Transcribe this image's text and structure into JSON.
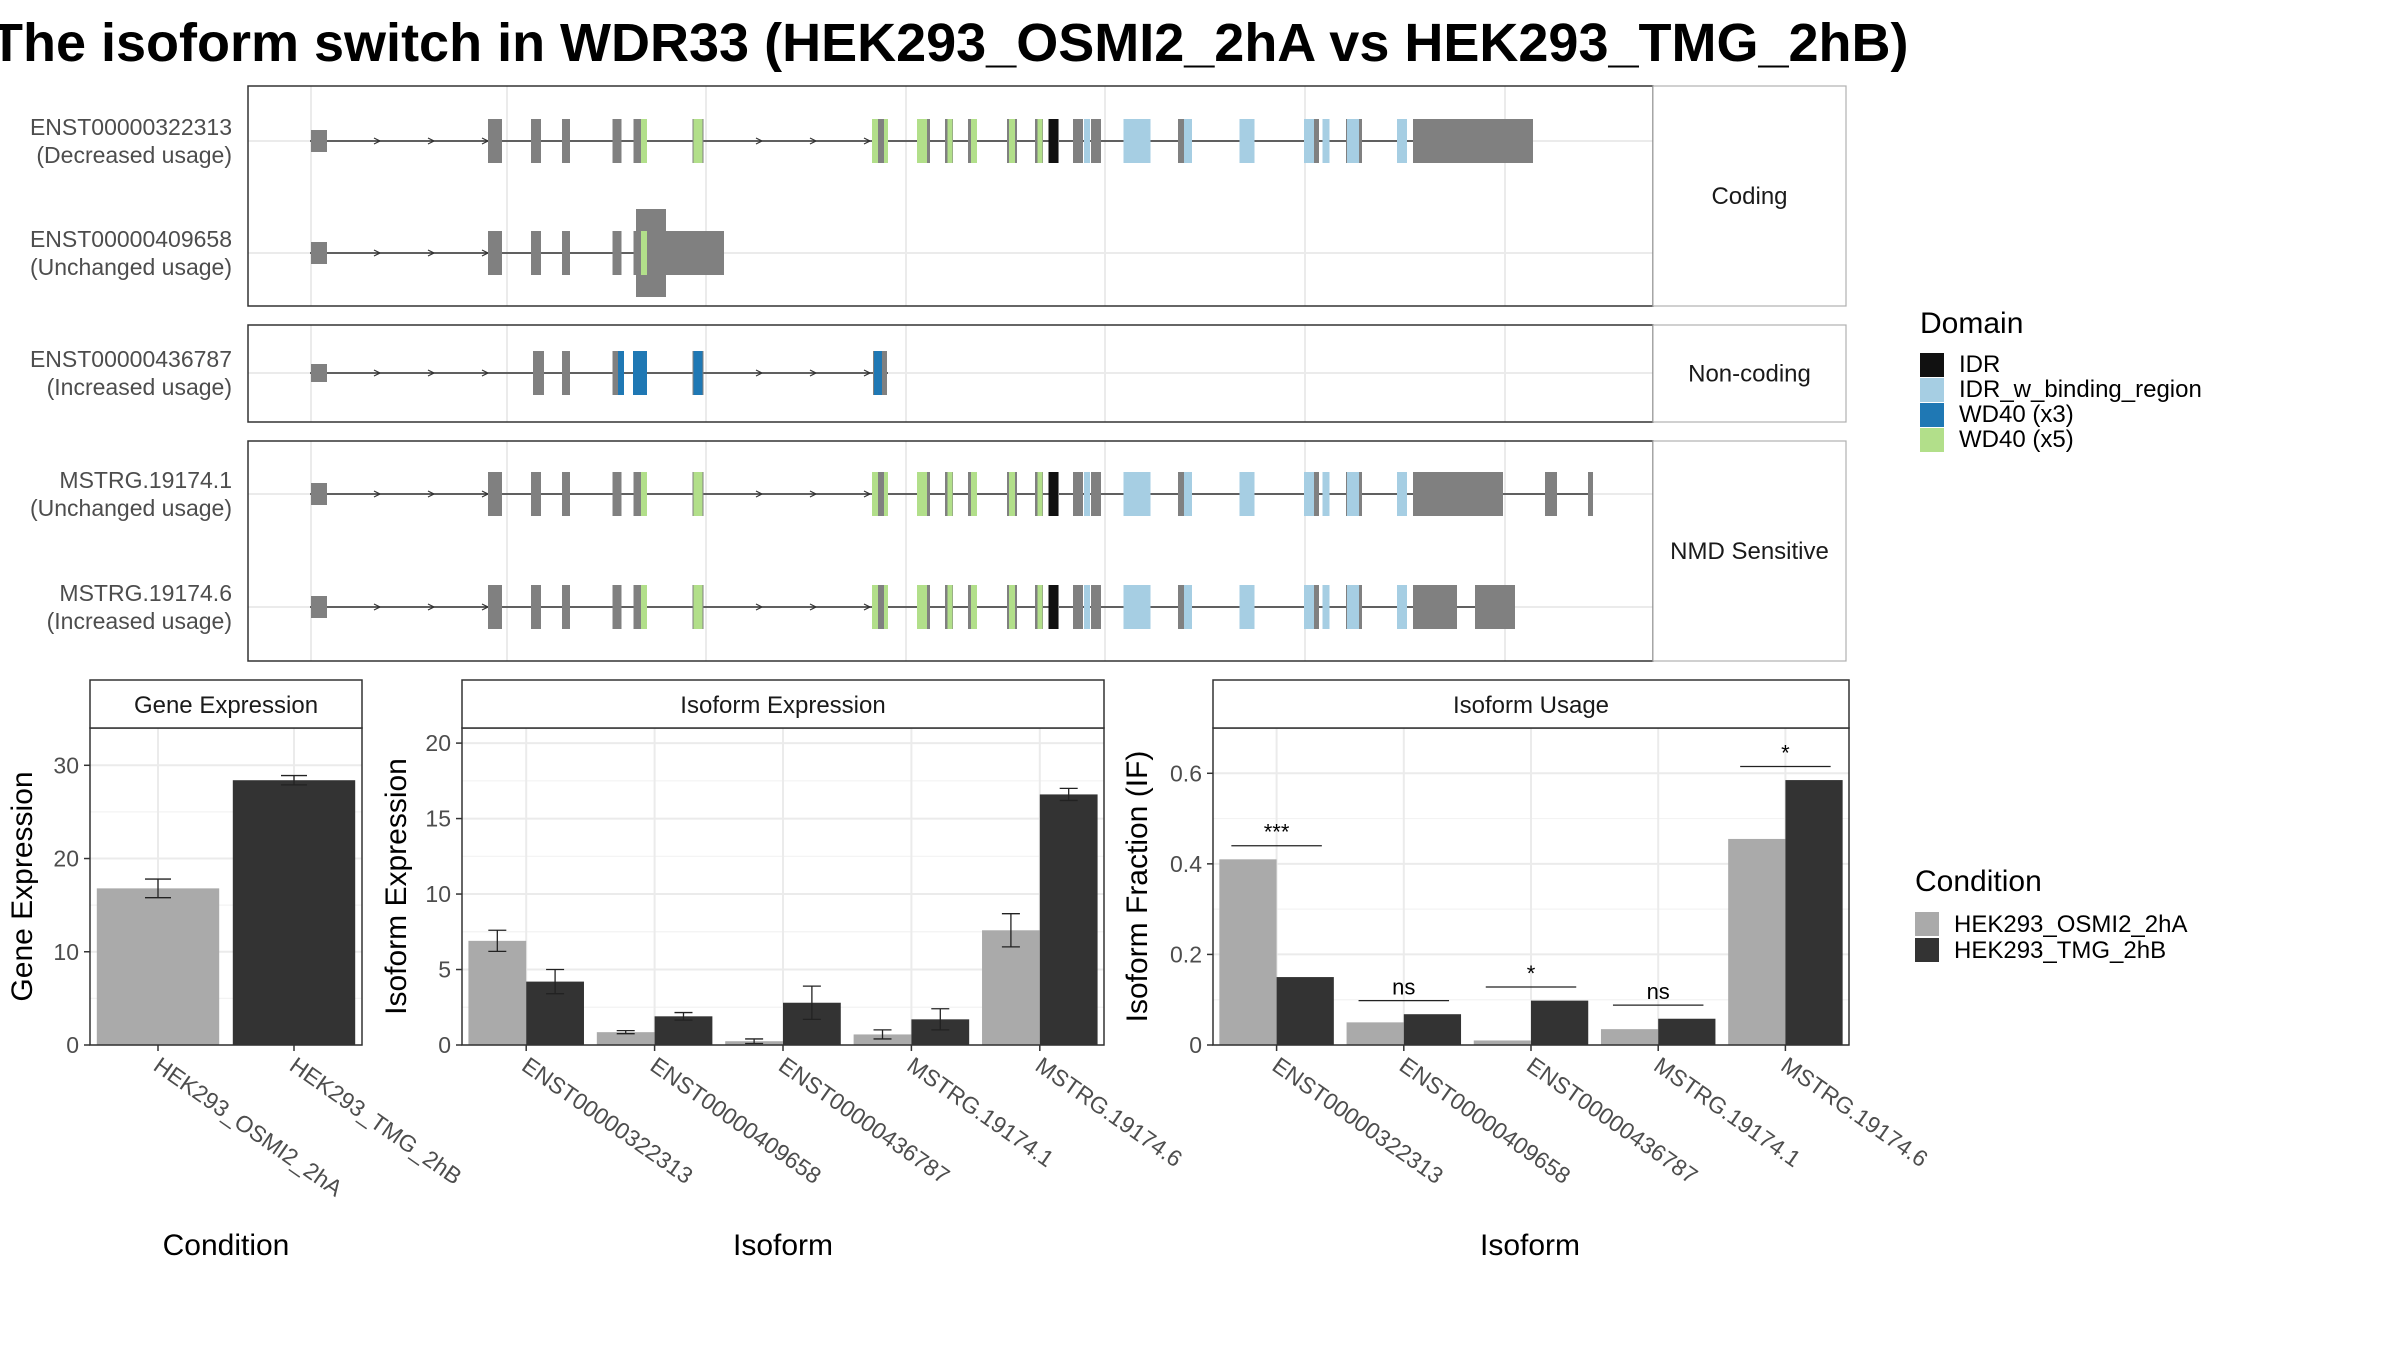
{
  "title": "The isoform switch in WDR33 (HEK293_OSMI2_2hA vs HEK293_TMG_2hB)",
  "colors": {
    "IDR": "#111111",
    "IDR_w_binding_region": "#a6cee3",
    "WD40 (x3)": "#1f78b4",
    "WD40 (x5)": "#b2df8a",
    "exon": "#808080",
    "cond1": "#aaaaaa",
    "cond2": "#333333"
  },
  "structure": {
    "facets": [
      {
        "label": "Coding",
        "transcripts": [
          {
            "id": "ENST00000322313",
            "usage": "(Decreased usage)",
            "variant": "full",
            "tail": "long"
          },
          {
            "id": "ENST00000409658",
            "usage": "(Unchanged usage)",
            "variant": "short"
          }
        ]
      },
      {
        "label": "Non-coding",
        "transcripts": [
          {
            "id": "ENST00000436787",
            "usage": "(Increased usage)",
            "variant": "noncoding"
          }
        ]
      },
      {
        "label": "NMD Sensitive",
        "transcripts": [
          {
            "id": "MSTRG.19174.1",
            "usage": "(Unchanged usage)",
            "variant": "full",
            "tail": "nmd1"
          },
          {
            "id": "MSTRG.19174.6",
            "usage": "(Increased usage)",
            "variant": "full",
            "tail": "nmd6"
          }
        ]
      }
    ]
  },
  "legend_domain": {
    "title": "Domain",
    "items": [
      {
        "label": "IDR",
        "color": "#111111"
      },
      {
        "label": "IDR_w_binding_region",
        "color": "#a6cee3"
      },
      {
        "label": "WD40 (x3)",
        "color": "#1f78b4"
      },
      {
        "label": "WD40 (x5)",
        "color": "#b2df8a"
      }
    ]
  },
  "legend_condition": {
    "title": "Condition",
    "items": [
      {
        "label": "HEK293_OSMI2_2hA",
        "color": "#aaaaaa"
      },
      {
        "label": "HEK293_TMG_2hB",
        "color": "#333333"
      }
    ]
  },
  "chart_data": [
    {
      "type": "bar",
      "title": "Gene Expression",
      "xlabel": "Condition",
      "ylabel": "Gene Expression",
      "ylim": [
        0,
        34
      ],
      "yticks": [
        0,
        10,
        20,
        30
      ],
      "categories": [
        "HEK293_OSMI2_2hA",
        "HEK293_TMG_2hB"
      ],
      "values": [
        16.8,
        28.4
      ],
      "errors": [
        1.0,
        0.5
      ]
    },
    {
      "type": "bar",
      "title": "Isoform Expression",
      "xlabel": "Isoform",
      "ylabel": "Isoform Expression",
      "ylim": [
        0,
        21
      ],
      "yticks": [
        0,
        5,
        10,
        15,
        20
      ],
      "categories": [
        "ENST00000322313",
        "ENST00000409658",
        "ENST00000436787",
        "MSTRG.19174.1",
        "MSTRG.19174.6"
      ],
      "series": [
        {
          "name": "HEK293_OSMI2_2hA",
          "values": [
            6.9,
            0.85,
            0.25,
            0.7,
            7.6
          ],
          "errors": [
            0.7,
            0.1,
            0.15,
            0.3,
            1.1
          ]
        },
        {
          "name": "HEK293_TMG_2hB",
          "values": [
            4.2,
            1.9,
            2.8,
            1.7,
            16.6
          ],
          "errors": [
            0.8,
            0.25,
            1.1,
            0.7,
            0.4
          ]
        }
      ]
    },
    {
      "type": "bar",
      "title": "Isoform Usage",
      "xlabel": "Isoform",
      "ylabel": "Isoform Fraction (IF)",
      "ylim": [
        0,
        0.7
      ],
      "yticks": [
        0,
        0.2,
        0.4,
        0.6
      ],
      "categories": [
        "ENST00000322313",
        "ENST00000409658",
        "ENST00000436787",
        "MSTRG.19174.1",
        "MSTRG.19174.6"
      ],
      "series": [
        {
          "name": "HEK293_OSMI2_2hA",
          "values": [
            0.41,
            0.05,
            0.01,
            0.035,
            0.455
          ]
        },
        {
          "name": "HEK293_TMG_2hB",
          "values": [
            0.15,
            0.068,
            0.098,
            0.058,
            0.585
          ]
        }
      ],
      "significance": [
        "***",
        "ns",
        "*",
        "ns",
        "*"
      ]
    }
  ]
}
